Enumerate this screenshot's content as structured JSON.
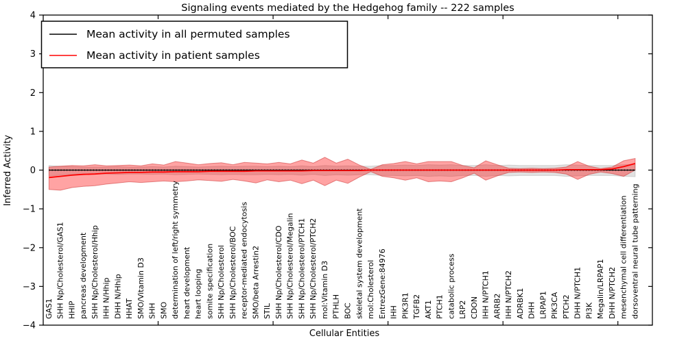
{
  "chart_data": {
    "type": "line",
    "title": "Signaling events mediated by the Hedgehog family -- 222 samples",
    "xlabel": "Cellular Entities",
    "ylabel": "Inferred Activity",
    "ylim": [
      -4,
      4
    ],
    "yticks": [
      4,
      3,
      2,
      1,
      0,
      -1,
      -2,
      -3,
      -4
    ],
    "x_major_ticks": [
      10,
      20,
      30,
      40,
      50
    ],
    "grid": false,
    "legend_position": "upper left",
    "legend": [
      {
        "label": "Mean activity in all permuted samples",
        "color": "#000000"
      },
      {
        "label": "Mean activity in patient samples",
        "color": "#ff0000"
      }
    ],
    "categories": [
      "GAS1",
      "SHH Np/Cholesterol/GAS1",
      "HHIP",
      "pancreas development",
      "SHH Np/Cholesterol/Hhip",
      "IHH N/Hhip",
      "DHH N/Hhip",
      "HHAT",
      "SMO/Vitamin D3",
      "SHH",
      "SMO",
      "determination of left/right symmetry",
      "heart development",
      "heart looping",
      "somite specification",
      "SHH Np/Cholesterol",
      "SHH Np/Cholesterol/BOC",
      "receptor-mediated endocytosis",
      "SMO/beta Arrestin2",
      "STIL",
      "SHH Np/Cholesterol/CDO",
      "SHH Np/Cholesterol/Megalin",
      "SHH Np/Cholesterol/PTCH1",
      "SHH Np/Cholesterol/PTCH2",
      "mol:Vitamin D3",
      "PTHLH",
      "BOC",
      "skeletal system development",
      "mol:Cholesterol",
      "EntrezGene:84976",
      "IHH",
      "PIK3R1",
      "TGFB2",
      "AKT1",
      "PTCH1",
      "catabolic process",
      "LRP2",
      "CDON",
      "IHH N/PTCH1",
      "ARRB2",
      "IHH N/PTCH2",
      "ADRBK1",
      "DHH",
      "LRPAP1",
      "PIK3CA",
      "PTCH2",
      "DHH N/PTCH1",
      "PI3K",
      "Megalin/LRPAP1",
      "DHH N/PTCH2",
      "mesenchymal cell differentiation",
      "dorsoventral neural tube patterning"
    ],
    "series": [
      {
        "name": "Mean activity in all permuted samples",
        "color": "#000000",
        "values": [
          0,
          0,
          0,
          0,
          0,
          0,
          0,
          0,
          0,
          0,
          0,
          0,
          0,
          0,
          0,
          0,
          0,
          0,
          0,
          0,
          0,
          0,
          0,
          0,
          0,
          0,
          0,
          0,
          0,
          0,
          0,
          0,
          0,
          0,
          0,
          0,
          0,
          0,
          0,
          0,
          0,
          0,
          0,
          0,
          0,
          0,
          0,
          0,
          0,
          0,
          0,
          0
        ],
        "band": {
          "color": "#aaaaaa",
          "upper": [
            0.12,
            0.1,
            0.09,
            0.08,
            0.08,
            0.08,
            0.09,
            0.08,
            0.08,
            0.09,
            0.08,
            0.1,
            0.09,
            0.08,
            0.09,
            0.1,
            0.09,
            0.1,
            0.1,
            0.09,
            0.1,
            0.09,
            0.11,
            0.09,
            0.12,
            0.1,
            0.11,
            0.1,
            0.1,
            0.12,
            0.12,
            0.13,
            0.12,
            0.14,
            0.13,
            0.14,
            0.12,
            0.12,
            0.14,
            0.12,
            0.13,
            0.12,
            0.12,
            0.12,
            0.12,
            0.14,
            0.13,
            0.12,
            0.12,
            0.12,
            0.14,
            0.15
          ],
          "lower": [
            -0.15,
            -0.13,
            -0.11,
            -0.1,
            -0.1,
            -0.1,
            -0.11,
            -0.1,
            -0.1,
            -0.11,
            -0.1,
            -0.12,
            -0.11,
            -0.1,
            -0.11,
            -0.12,
            -0.11,
            -0.12,
            -0.12,
            -0.11,
            -0.12,
            -0.11,
            -0.13,
            -0.11,
            -0.14,
            -0.12,
            -0.13,
            -0.12,
            -0.12,
            -0.14,
            -0.14,
            -0.15,
            -0.14,
            -0.16,
            -0.15,
            -0.16,
            -0.14,
            -0.14,
            -0.16,
            -0.14,
            -0.15,
            -0.14,
            -0.14,
            -0.14,
            -0.14,
            -0.16,
            -0.15,
            -0.14,
            -0.14,
            -0.14,
            -0.16,
            -0.17
          ]
        }
      },
      {
        "name": "Mean activity in patient samples",
        "color": "#ff0000",
        "values": [
          -0.19,
          -0.16,
          -0.13,
          -0.11,
          -0.1,
          -0.08,
          -0.07,
          -0.06,
          -0.06,
          -0.05,
          -0.05,
          -0.04,
          -0.04,
          -0.04,
          -0.03,
          -0.03,
          -0.03,
          -0.03,
          -0.02,
          -0.02,
          -0.02,
          -0.02,
          -0.02,
          -0.01,
          -0.01,
          -0.01,
          -0.01,
          -0.01,
          0.0,
          0.0,
          0.0,
          0.0,
          0.0,
          0.0,
          0.0,
          0.0,
          0.0,
          0.0,
          0.0,
          0.0,
          0.0,
          0.0,
          0.0,
          0.0,
          0.0,
          0.01,
          0.01,
          0.01,
          0.01,
          0.03,
          0.09,
          0.17
        ],
        "band": {
          "color": "#ff0000",
          "upper": [
            0.08,
            0.1,
            0.12,
            0.11,
            0.14,
            0.11,
            0.12,
            0.13,
            0.11,
            0.16,
            0.13,
            0.22,
            0.18,
            0.14,
            0.17,
            0.19,
            0.14,
            0.2,
            0.18,
            0.16,
            0.2,
            0.16,
            0.26,
            0.18,
            0.33,
            0.18,
            0.28,
            0.13,
            0.02,
            0.14,
            0.17,
            0.22,
            0.16,
            0.22,
            0.22,
            0.22,
            0.12,
            0.06,
            0.24,
            0.14,
            0.05,
            0.04,
            0.05,
            0.04,
            0.05,
            0.08,
            0.22,
            0.1,
            0.04,
            0.08,
            0.24,
            0.3
          ],
          "lower": [
            -0.5,
            -0.52,
            -0.45,
            -0.42,
            -0.4,
            -0.36,
            -0.33,
            -0.3,
            -0.32,
            -0.3,
            -0.28,
            -0.3,
            -0.28,
            -0.25,
            -0.27,
            -0.29,
            -0.24,
            -0.28,
            -0.33,
            -0.25,
            -0.3,
            -0.26,
            -0.35,
            -0.26,
            -0.4,
            -0.26,
            -0.34,
            -0.18,
            -0.04,
            -0.16,
            -0.2,
            -0.26,
            -0.2,
            -0.3,
            -0.28,
            -0.3,
            -0.2,
            -0.08,
            -0.26,
            -0.15,
            -0.06,
            -0.05,
            -0.06,
            -0.05,
            -0.06,
            -0.1,
            -0.24,
            -0.11,
            -0.05,
            -0.09,
            -0.16,
            0.0
          ]
        }
      }
    ]
  }
}
